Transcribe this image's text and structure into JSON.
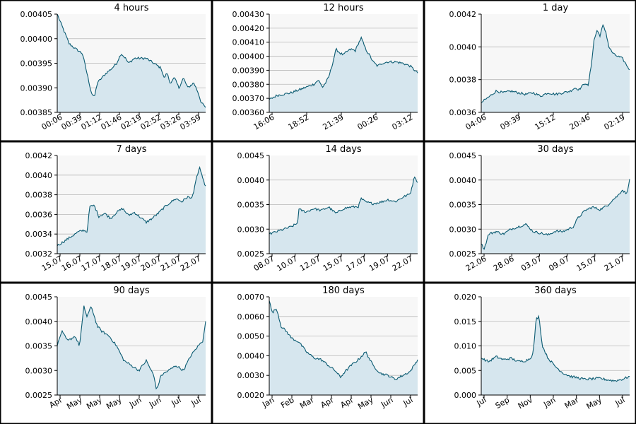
{
  "colors": {
    "line": "#0b5b72",
    "fill": "#d6e6ee",
    "plot_background": "#f7f7f7",
    "gridline": "#b9b9b9",
    "panel_border": "#000000"
  },
  "chart_data": [
    {
      "type": "area",
      "title": "4 hours",
      "ylim": [
        0.00385,
        0.00405
      ],
      "yticks": [
        "0.00385",
        "0.00390",
        "0.00395",
        "0.00400",
        "0.00405"
      ],
      "xticks": [
        "00:06",
        "00:39",
        "01:12",
        "01:46",
        "02:19",
        "02:52",
        "03:26",
        "03:59"
      ],
      "grid": true,
      "x": [
        0,
        0.04,
        0.08,
        0.12,
        0.17,
        0.2,
        0.23,
        0.25,
        0.27,
        0.3,
        0.33,
        0.37,
        0.4,
        0.43,
        0.46,
        0.48,
        0.52,
        0.55,
        0.6,
        0.65,
        0.7,
        0.72,
        0.74,
        0.76,
        0.79,
        0.82,
        0.85,
        0.88,
        0.92,
        0.95,
        0.97,
        1.0
      ],
      "y": [
        0.00405,
        0.00402,
        0.00399,
        0.00398,
        0.00397,
        0.00393,
        0.00389,
        0.00388,
        0.00391,
        0.00392,
        0.00393,
        0.00394,
        0.00395,
        0.00397,
        0.00396,
        0.00395,
        0.00396,
        0.00396,
        0.00396,
        0.00395,
        0.00394,
        0.00392,
        0.00393,
        0.00391,
        0.00392,
        0.0039,
        0.00392,
        0.0039,
        0.00391,
        0.00389,
        0.00387,
        0.00386
      ]
    },
    {
      "type": "area",
      "title": "12 hours",
      "ylim": [
        0.0036,
        0.0043
      ],
      "yticks": [
        "0.00360",
        "0.00370",
        "0.00380",
        "0.00390",
        "0.00400",
        "0.00410",
        "0.00420",
        "0.00430"
      ],
      "xticks": [
        "16:06",
        "18:52",
        "21:39",
        "00:26",
        "03:12"
      ],
      "grid": true,
      "x": [
        0,
        0.05,
        0.1,
        0.15,
        0.2,
        0.25,
        0.3,
        0.33,
        0.36,
        0.38,
        0.4,
        0.42,
        0.45,
        0.48,
        0.5,
        0.52,
        0.55,
        0.58,
        0.6,
        0.62,
        0.65,
        0.68,
        0.7,
        0.73,
        0.76,
        0.8,
        0.85,
        0.9,
        0.95,
        1.0
      ],
      "y": [
        0.00369,
        0.00372,
        0.00373,
        0.00374,
        0.00376,
        0.00378,
        0.0038,
        0.00383,
        0.00378,
        0.00381,
        0.00385,
        0.00392,
        0.00405,
        0.00402,
        0.00401,
        0.00403,
        0.00405,
        0.00404,
        0.00409,
        0.00413,
        0.00405,
        0.004,
        0.00396,
        0.00393,
        0.00395,
        0.00396,
        0.00396,
        0.00395,
        0.00393,
        0.00388
      ]
    },
    {
      "type": "area",
      "title": "1 day",
      "ylim": [
        0.0036,
        0.0042
      ],
      "yticks": [
        "0.0036",
        "0.0038",
        "0.0040",
        "0.0042"
      ],
      "xticks": [
        "04:06",
        "09:39",
        "15:12",
        "20:46",
        "02:19"
      ],
      "grid": true,
      "x": [
        0,
        0.03,
        0.06,
        0.1,
        0.15,
        0.2,
        0.25,
        0.3,
        0.35,
        0.4,
        0.45,
        0.5,
        0.55,
        0.6,
        0.63,
        0.66,
        0.68,
        0.7,
        0.72,
        0.74,
        0.76,
        0.78,
        0.8,
        0.82,
        0.84,
        0.86,
        0.88,
        0.9,
        0.95,
        1.0
      ],
      "y": [
        0.00366,
        0.00368,
        0.0037,
        0.00373,
        0.00372,
        0.00373,
        0.00372,
        0.00371,
        0.00372,
        0.0037,
        0.00372,
        0.00371,
        0.00372,
        0.00373,
        0.00375,
        0.00374,
        0.00376,
        0.00378,
        0.00376,
        0.00388,
        0.00404,
        0.0041,
        0.00407,
        0.00413,
        0.00409,
        0.004,
        0.00397,
        0.00395,
        0.00393,
        0.00386
      ]
    },
    {
      "type": "area",
      "title": "7 days",
      "ylim": [
        0.0032,
        0.0042
      ],
      "yticks": [
        "0.0032",
        "0.0034",
        "0.0036",
        "0.0038",
        "0.0040",
        "0.0042"
      ],
      "xticks": [
        "15.07",
        "16.07",
        "17.07",
        "18.07",
        "19.07",
        "20.07",
        "21.07",
        "22.07"
      ],
      "grid": true,
      "x": [
        0,
        0.03,
        0.06,
        0.1,
        0.14,
        0.18,
        0.2,
        0.22,
        0.25,
        0.28,
        0.32,
        0.36,
        0.4,
        0.44,
        0.48,
        0.52,
        0.56,
        0.6,
        0.64,
        0.68,
        0.72,
        0.76,
        0.8,
        0.84,
        0.88,
        0.9,
        0.92,
        0.94,
        0.96,
        0.98,
        1.0
      ],
      "y": [
        0.00328,
        0.00331,
        0.00334,
        0.00338,
        0.00342,
        0.00344,
        0.00342,
        0.00368,
        0.00369,
        0.00358,
        0.00361,
        0.00356,
        0.00362,
        0.00366,
        0.00359,
        0.00362,
        0.00357,
        0.00352,
        0.00356,
        0.00361,
        0.00367,
        0.00372,
        0.00376,
        0.00373,
        0.00378,
        0.00376,
        0.00383,
        0.00398,
        0.00408,
        0.00396,
        0.00389
      ]
    },
    {
      "type": "area",
      "title": "14 days",
      "ylim": [
        0.0025,
        0.0045
      ],
      "yticks": [
        "0.0025",
        "0.0030",
        "0.0035",
        "0.0040",
        "0.0045"
      ],
      "xticks": [
        "08.07",
        "10.07",
        "12.07",
        "15.07",
        "17.07",
        "19.07",
        "22.07"
      ],
      "grid": true,
      "x": [
        0,
        0.05,
        0.1,
        0.15,
        0.19,
        0.2,
        0.25,
        0.3,
        0.35,
        0.4,
        0.45,
        0.5,
        0.55,
        0.6,
        0.62,
        0.65,
        0.7,
        0.75,
        0.8,
        0.85,
        0.9,
        0.95,
        0.98,
        1.0
      ],
      "y": [
        0.0029,
        0.00295,
        0.003,
        0.00305,
        0.00312,
        0.0034,
        0.00335,
        0.00342,
        0.00338,
        0.00345,
        0.00332,
        0.00342,
        0.00345,
        0.00346,
        0.00362,
        0.00355,
        0.00352,
        0.00355,
        0.0036,
        0.00356,
        0.00365,
        0.00372,
        0.00408,
        0.00395
      ]
    },
    {
      "type": "area",
      "title": "30 days",
      "ylim": [
        0.0025,
        0.0045
      ],
      "yticks": [
        "0.0025",
        "0.0030",
        "0.0035",
        "0.0040",
        "0.0045"
      ],
      "xticks": [
        "22.06",
        "28.06",
        "03.07",
        "09.07",
        "15.07",
        "21.07"
      ],
      "grid": true,
      "x": [
        0,
        0.02,
        0.05,
        0.1,
        0.15,
        0.2,
        0.25,
        0.3,
        0.35,
        0.4,
        0.45,
        0.5,
        0.55,
        0.6,
        0.62,
        0.65,
        0.7,
        0.75,
        0.8,
        0.85,
        0.88,
        0.92,
        0.95,
        0.98,
        1.0
      ],
      "y": [
        0.0027,
        0.0026,
        0.0029,
        0.00295,
        0.0029,
        0.003,
        0.00305,
        0.0031,
        0.00295,
        0.00292,
        0.00288,
        0.00296,
        0.00295,
        0.00302,
        0.00305,
        0.00322,
        0.00338,
        0.00345,
        0.0034,
        0.00348,
        0.00358,
        0.00368,
        0.0038,
        0.00372,
        0.00402
      ]
    },
    {
      "type": "area",
      "title": "90 days",
      "ylim": [
        0.0025,
        0.0045
      ],
      "yticks": [
        "0.0025",
        "0.0030",
        "0.0035",
        "0.0040",
        "0.0045"
      ],
      "xticks": [
        "Apr",
        "May",
        "May",
        "May",
        "Jun",
        "Jun",
        "Jul",
        "Jul"
      ],
      "grid": true,
      "x": [
        0,
        0.03,
        0.07,
        0.12,
        0.15,
        0.18,
        0.2,
        0.23,
        0.27,
        0.3,
        0.35,
        0.4,
        0.45,
        0.5,
        0.55,
        0.6,
        0.65,
        0.67,
        0.7,
        0.75,
        0.8,
        0.85,
        0.9,
        0.95,
        0.98,
        1.0
      ],
      "y": [
        0.0035,
        0.0038,
        0.0036,
        0.0037,
        0.0035,
        0.0043,
        0.0041,
        0.0043,
        0.0039,
        0.0038,
        0.0037,
        0.0035,
        0.0032,
        0.0031,
        0.003,
        0.0032,
        0.0029,
        0.0026,
        0.0029,
        0.003,
        0.0031,
        0.003,
        0.0033,
        0.0035,
        0.0036,
        0.004
      ]
    },
    {
      "type": "area",
      "title": "180 days",
      "ylim": [
        0.002,
        0.007
      ],
      "yticks": [
        "0.0020",
        "0.0030",
        "0.0040",
        "0.0050",
        "0.0060",
        "0.0070"
      ],
      "xticks": [
        "Jan",
        "Feb",
        "Mar",
        "Apr",
        "Apr",
        "May",
        "Jun",
        "Jul"
      ],
      "grid": true,
      "x": [
        0,
        0.02,
        0.05,
        0.08,
        0.12,
        0.15,
        0.2,
        0.25,
        0.3,
        0.35,
        0.4,
        0.45,
        0.48,
        0.5,
        0.55,
        0.6,
        0.65,
        0.7,
        0.75,
        0.8,
        0.85,
        0.9,
        0.95,
        1.0
      ],
      "y": [
        0.0068,
        0.0062,
        0.0064,
        0.0055,
        0.0052,
        0.0049,
        0.0047,
        0.0042,
        0.0039,
        0.0038,
        0.0035,
        0.0032,
        0.0029,
        0.0031,
        0.0035,
        0.0038,
        0.0042,
        0.0035,
        0.0031,
        0.003,
        0.0028,
        0.003,
        0.0032,
        0.0038
      ]
    },
    {
      "type": "area",
      "title": "360 days",
      "ylim": [
        0,
        0.02
      ],
      "yticks": [
        "0.000",
        "0.005",
        "0.010",
        "0.015",
        "0.020"
      ],
      "xticks": [
        "Jul",
        "Sep",
        "Nov",
        "Jan",
        "Mar",
        "May",
        "Jul"
      ],
      "grid": true,
      "x": [
        0,
        0.05,
        0.1,
        0.15,
        0.2,
        0.25,
        0.3,
        0.33,
        0.35,
        0.37,
        0.39,
        0.41,
        0.43,
        0.45,
        0.5,
        0.55,
        0.6,
        0.65,
        0.7,
        0.75,
        0.8,
        0.85,
        0.9,
        0.95,
        1.0
      ],
      "y": [
        0.0075,
        0.0068,
        0.0078,
        0.0072,
        0.0075,
        0.0068,
        0.007,
        0.0075,
        0.0085,
        0.0155,
        0.016,
        0.0102,
        0.0088,
        0.0075,
        0.0058,
        0.0045,
        0.0038,
        0.0035,
        0.0032,
        0.0033,
        0.0034,
        0.0031,
        0.0029,
        0.0032,
        0.0038
      ]
    }
  ]
}
